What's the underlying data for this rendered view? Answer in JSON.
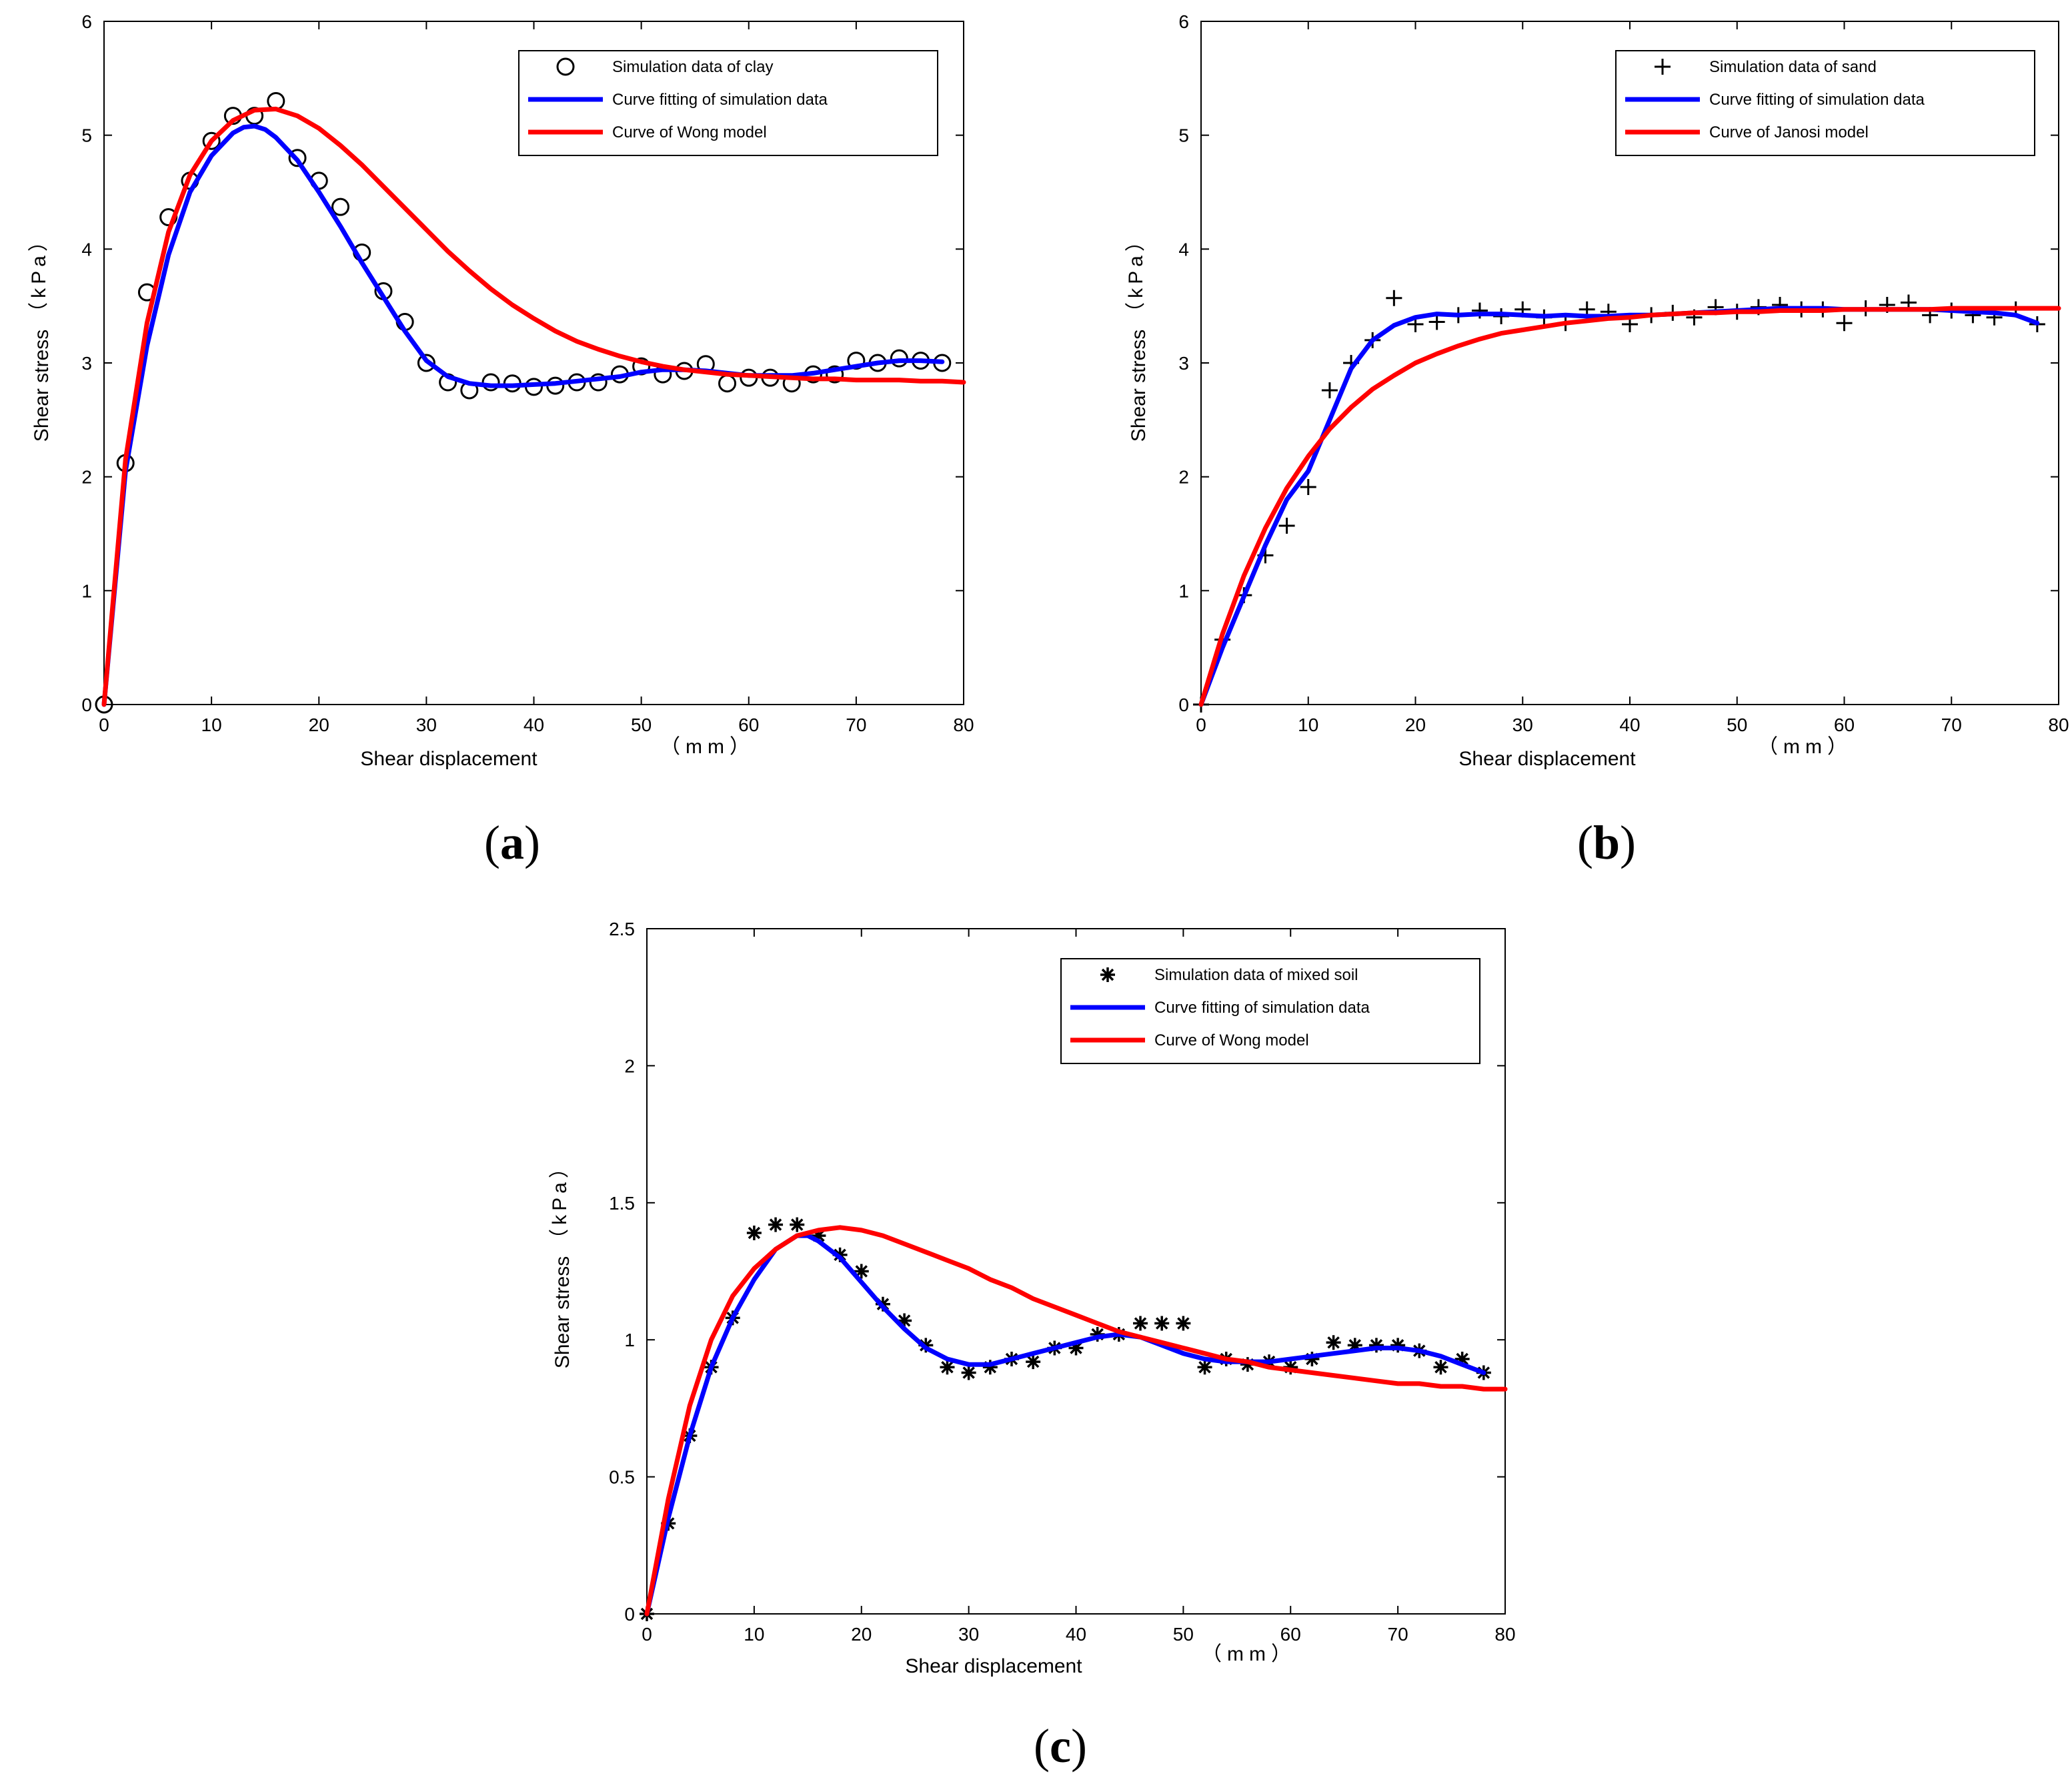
{
  "chart_data": [
    {
      "id": "a",
      "type": "scatter",
      "caption": "(a)",
      "caption_letter": "a",
      "xlabel": "Shear displacement",
      "xunit": "（mm）",
      "ylabel": "Shear stress",
      "yunit": "（kPa）",
      "xlim": [
        0,
        80
      ],
      "ylim": [
        0,
        6
      ],
      "xticks": [
        0,
        10,
        20,
        30,
        40,
        50,
        60,
        70,
        80
      ],
      "yticks": [
        0,
        1,
        2,
        3,
        4,
        5,
        6
      ],
      "ytick_labels": [
        "0",
        "1",
        "2",
        "3",
        "4",
        "5",
        "6"
      ],
      "legend_position": "top-right",
      "series": [
        {
          "name": "Simulation data of clay",
          "style": "markers",
          "marker": "circle",
          "color": "#000000",
          "x": [
            0,
            2,
            4,
            6,
            8,
            10,
            12,
            14,
            16,
            18,
            20,
            22,
            24,
            26,
            28,
            30,
            32,
            34,
            36,
            38,
            40,
            42,
            44,
            46,
            48,
            50,
            52,
            54,
            56,
            58,
            60,
            62,
            64,
            66,
            68,
            70,
            72,
            74,
            76,
            78
          ],
          "y": [
            0,
            2.12,
            3.62,
            4.28,
            4.6,
            4.95,
            5.17,
            5.17,
            5.3,
            4.8,
            4.6,
            4.37,
            3.97,
            3.63,
            3.36,
            3.0,
            2.83,
            2.76,
            2.83,
            2.82,
            2.79,
            2.8,
            2.83,
            2.83,
            2.9,
            2.97,
            2.9,
            2.93,
            2.99,
            2.82,
            2.87,
            2.87,
            2.82,
            2.9,
            2.9,
            3.02,
            3.0,
            3.04,
            3.02,
            3.0
          ]
        },
        {
          "name": "Curve fitting of simulation data",
          "style": "line",
          "color": "#0000ff",
          "x": [
            0,
            2,
            4,
            6,
            8,
            10,
            12,
            13,
            14,
            15,
            16,
            18,
            20,
            22,
            24,
            26,
            28,
            30,
            32,
            34,
            36,
            38,
            40,
            42,
            44,
            46,
            48,
            50,
            52,
            54,
            56,
            58,
            60,
            62,
            64,
            66,
            68,
            70,
            72,
            74,
            76,
            78
          ],
          "y": [
            0,
            2.05,
            3.15,
            3.95,
            4.5,
            4.82,
            5.02,
            5.07,
            5.08,
            5.05,
            4.98,
            4.78,
            4.5,
            4.2,
            3.88,
            3.58,
            3.28,
            3.02,
            2.88,
            2.82,
            2.8,
            2.8,
            2.81,
            2.82,
            2.84,
            2.86,
            2.88,
            2.92,
            2.94,
            2.94,
            2.93,
            2.91,
            2.89,
            2.89,
            2.89,
            2.91,
            2.94,
            2.97,
            3.0,
            3.02,
            3.02,
            3.01
          ]
        },
        {
          "name": "Curve of Wong model",
          "style": "line",
          "color": "#ff0000",
          "x": [
            0,
            2,
            4,
            6,
            8,
            10,
            12,
            14,
            16,
            18,
            20,
            22,
            24,
            26,
            28,
            30,
            32,
            34,
            36,
            38,
            40,
            42,
            44,
            46,
            48,
            50,
            52,
            54,
            56,
            58,
            60,
            62,
            64,
            66,
            68,
            70,
            72,
            74,
            76,
            78,
            80
          ],
          "y": [
            0,
            2.15,
            3.35,
            4.15,
            4.65,
            4.95,
            5.13,
            5.22,
            5.23,
            5.17,
            5.06,
            4.91,
            4.74,
            4.55,
            4.36,
            4.17,
            3.98,
            3.81,
            3.65,
            3.51,
            3.39,
            3.28,
            3.19,
            3.12,
            3.06,
            3.01,
            2.97,
            2.94,
            2.92,
            2.9,
            2.89,
            2.88,
            2.87,
            2.86,
            2.86,
            2.85,
            2.85,
            2.85,
            2.84,
            2.84,
            2.83
          ]
        }
      ]
    },
    {
      "id": "b",
      "type": "scatter",
      "caption": "(b)",
      "caption_letter": "b",
      "xlabel": "Shear displacement",
      "xunit": "（mm）",
      "ylabel": "Shear stress",
      "yunit": "（kPa）",
      "xlim": [
        0,
        80
      ],
      "ylim": [
        0,
        6
      ],
      "xticks": [
        0,
        10,
        20,
        30,
        40,
        50,
        60,
        70,
        80
      ],
      "yticks": [
        0,
        1,
        2,
        3,
        4,
        5,
        6
      ],
      "ytick_labels": [
        "0",
        "1",
        "2",
        "3",
        "4",
        "5",
        "6"
      ],
      "legend_position": "top-right",
      "series": [
        {
          "name": "Simulation data of sand",
          "style": "markers",
          "marker": "plus",
          "color": "#000000",
          "x": [
            0,
            2,
            4,
            6,
            8,
            10,
            12,
            14,
            16,
            18,
            20,
            22,
            24,
            26,
            28,
            30,
            32,
            34,
            36,
            38,
            40,
            42,
            44,
            46,
            48,
            50,
            52,
            54,
            56,
            58,
            60,
            62,
            64,
            66,
            68,
            70,
            72,
            74,
            76,
            78
          ],
          "y": [
            0,
            0.57,
            0.96,
            1.31,
            1.57,
            1.91,
            2.76,
            3.0,
            3.2,
            3.57,
            3.34,
            3.36,
            3.42,
            3.46,
            3.41,
            3.47,
            3.4,
            3.35,
            3.47,
            3.45,
            3.34,
            3.42,
            3.44,
            3.4,
            3.49,
            3.45,
            3.49,
            3.51,
            3.47,
            3.47,
            3.35,
            3.48,
            3.51,
            3.53,
            3.42,
            3.46,
            3.42,
            3.4,
            3.47,
            3.34
          ]
        },
        {
          "name": "Curve fitting of simulation data",
          "style": "line",
          "color": "#0000ff",
          "x": [
            0,
            2,
            4,
            6,
            8,
            10,
            12,
            14,
            16,
            18,
            20,
            22,
            24,
            26,
            28,
            30,
            32,
            34,
            36,
            38,
            40,
            42,
            44,
            46,
            48,
            50,
            52,
            54,
            56,
            58,
            60,
            62,
            64,
            66,
            68,
            70,
            72,
            74,
            76,
            78
          ],
          "y": [
            0,
            0.5,
            0.95,
            1.4,
            1.8,
            2.05,
            2.5,
            2.95,
            3.2,
            3.33,
            3.4,
            3.43,
            3.42,
            3.43,
            3.43,
            3.42,
            3.41,
            3.42,
            3.41,
            3.41,
            3.42,
            3.42,
            3.43,
            3.44,
            3.45,
            3.46,
            3.47,
            3.48,
            3.48,
            3.48,
            3.47,
            3.47,
            3.47,
            3.47,
            3.47,
            3.46,
            3.45,
            3.44,
            3.42,
            3.35
          ]
        },
        {
          "name": "Curve of Janosi model",
          "style": "line",
          "color": "#ff0000",
          "x": [
            0,
            2,
            4,
            6,
            8,
            10,
            12,
            14,
            16,
            18,
            20,
            22,
            24,
            26,
            28,
            30,
            32,
            34,
            36,
            38,
            40,
            42,
            44,
            46,
            48,
            50,
            52,
            54,
            56,
            58,
            60,
            62,
            64,
            66,
            68,
            70,
            72,
            74,
            76,
            78,
            80
          ],
          "y": [
            0,
            0.62,
            1.13,
            1.55,
            1.9,
            2.18,
            2.42,
            2.61,
            2.77,
            2.89,
            3.0,
            3.08,
            3.15,
            3.21,
            3.26,
            3.29,
            3.32,
            3.35,
            3.37,
            3.39,
            3.4,
            3.42,
            3.43,
            3.44,
            3.44,
            3.45,
            3.45,
            3.46,
            3.46,
            3.46,
            3.47,
            3.47,
            3.47,
            3.47,
            3.47,
            3.48,
            3.48,
            3.48,
            3.48,
            3.48,
            3.48
          ]
        }
      ]
    },
    {
      "id": "c",
      "type": "scatter",
      "caption": "(c)",
      "caption_letter": "c",
      "xlabel": "Shear displacement",
      "xunit": "（mm）",
      "ylabel": "Shear stress",
      "yunit": "（kPa）",
      "xlim": [
        0,
        80
      ],
      "ylim": [
        0,
        2.5
      ],
      "xticks": [
        0,
        10,
        20,
        30,
        40,
        50,
        60,
        70,
        80
      ],
      "yticks": [
        0,
        0.5,
        1,
        1.5,
        2,
        2.5
      ],
      "ytick_labels": [
        "0",
        "0.5",
        "1",
        "1.5",
        "2",
        "2.5"
      ],
      "legend_position": "top-right",
      "series": [
        {
          "name": "Simulation data of mixed soil",
          "style": "markers",
          "marker": "asterisk",
          "color": "#000000",
          "x": [
            0,
            2,
            4,
            6,
            8,
            10,
            12,
            14,
            16,
            18,
            20,
            22,
            24,
            26,
            28,
            30,
            32,
            34,
            36,
            38,
            40,
            42,
            44,
            46,
            48,
            50,
            52,
            54,
            56,
            58,
            60,
            62,
            64,
            66,
            68,
            70,
            72,
            74,
            76,
            78
          ],
          "y": [
            0,
            0.33,
            0.65,
            0.9,
            1.08,
            1.39,
            1.42,
            1.42,
            1.38,
            1.31,
            1.25,
            1.13,
            1.07,
            0.98,
            0.9,
            0.88,
            0.9,
            0.93,
            0.92,
            0.97,
            0.97,
            1.02,
            1.02,
            1.06,
            1.06,
            1.06,
            0.9,
            0.93,
            0.91,
            0.92,
            0.9,
            0.93,
            0.99,
            0.98,
            0.98,
            0.98,
            0.96,
            0.9,
            0.93,
            0.88
          ]
        },
        {
          "name": "Curve fitting of simulation data",
          "style": "line",
          "color": "#0000ff",
          "x": [
            0,
            2,
            4,
            6,
            8,
            10,
            12,
            14,
            15,
            16,
            18,
            20,
            22,
            24,
            26,
            28,
            30,
            32,
            34,
            36,
            38,
            40,
            42,
            44,
            46,
            48,
            50,
            52,
            54,
            56,
            58,
            60,
            62,
            64,
            66,
            68,
            70,
            72,
            74,
            76,
            78
          ],
          "y": [
            0,
            0.35,
            0.65,
            0.9,
            1.08,
            1.22,
            1.33,
            1.38,
            1.38,
            1.36,
            1.3,
            1.21,
            1.12,
            1.04,
            0.97,
            0.93,
            0.91,
            0.91,
            0.93,
            0.95,
            0.97,
            0.99,
            1.01,
            1.02,
            1.01,
            0.98,
            0.95,
            0.93,
            0.92,
            0.92,
            0.92,
            0.93,
            0.94,
            0.95,
            0.96,
            0.97,
            0.97,
            0.96,
            0.94,
            0.91,
            0.88
          ]
        },
        {
          "name": "Curve of Wong model",
          "style": "line",
          "color": "#ff0000",
          "x": [
            0,
            2,
            4,
            6,
            8,
            10,
            12,
            14,
            16,
            18,
            20,
            22,
            24,
            26,
            28,
            30,
            32,
            34,
            36,
            38,
            40,
            42,
            44,
            46,
            48,
            50,
            52,
            54,
            56,
            58,
            60,
            62,
            64,
            66,
            68,
            70,
            72,
            74,
            76,
            78,
            80
          ],
          "y": [
            0,
            0.42,
            0.76,
            1.0,
            1.16,
            1.26,
            1.33,
            1.38,
            1.4,
            1.41,
            1.4,
            1.38,
            1.35,
            1.32,
            1.29,
            1.26,
            1.22,
            1.19,
            1.15,
            1.12,
            1.09,
            1.06,
            1.03,
            1.01,
            0.99,
            0.97,
            0.95,
            0.93,
            0.92,
            0.9,
            0.89,
            0.88,
            0.87,
            0.86,
            0.85,
            0.84,
            0.84,
            0.83,
            0.83,
            0.82,
            0.82
          ]
        }
      ]
    }
  ]
}
